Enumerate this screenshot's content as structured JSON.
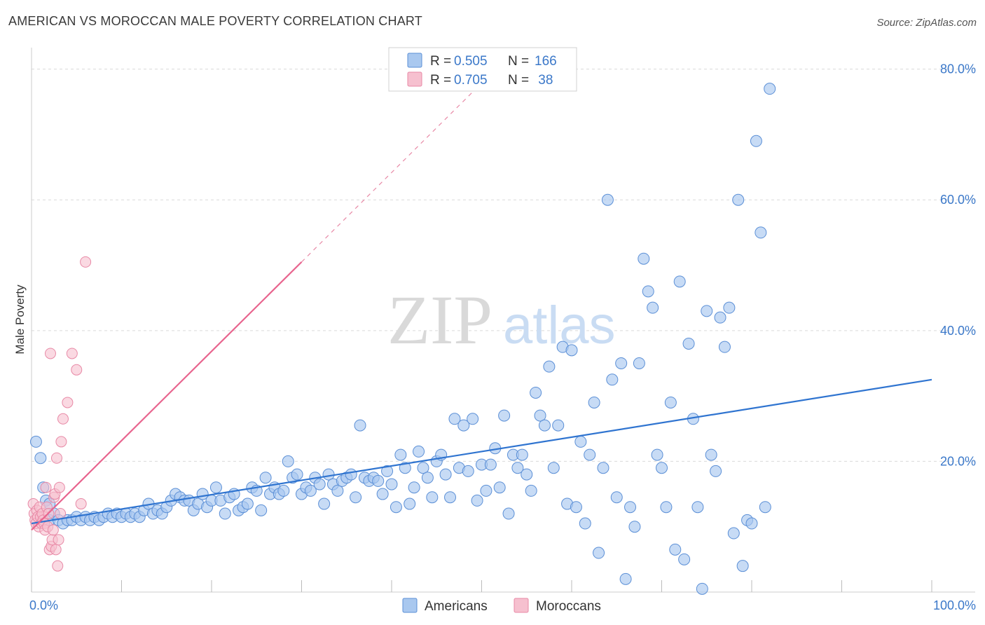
{
  "header": {
    "title": "AMERICAN VS MOROCCAN MALE POVERTY CORRELATION CHART",
    "source": "Source: ZipAtlas.com"
  },
  "watermark": {
    "zip": "ZIP",
    "atlas": "atlas"
  },
  "legend": {
    "rows": [
      {
        "r_label": "R = ",
        "r_value": "0.505",
        "n_label": "N = ",
        "n_value": "166"
      },
      {
        "r_label": "R = ",
        "r_value": "0.705",
        "n_label": "N = ",
        "n_value": " 38"
      }
    ]
  },
  "bottom_legend": {
    "americans": "Americans",
    "moroccans": "Moroccans"
  },
  "colors": {
    "americans_fill": "#a9c8ef",
    "americans_stroke": "#5b8fd6",
    "americans_line": "#2f74d0",
    "moroccans_fill": "#f6c0cf",
    "moroccans_stroke": "#e889a6",
    "moroccans_line": "#e8648e",
    "tick_label": "#3b78c9",
    "grid": "#d9d9d9"
  },
  "chart_data": {
    "type": "scatter",
    "title": "AMERICAN VS MOROCCAN MALE POVERTY CORRELATION CHART",
    "xlabel": "",
    "ylabel": "Male Poverty",
    "xlim": [
      0,
      100
    ],
    "ylim": [
      0,
      82
    ],
    "x_tick_labels": [
      "0.0%",
      "100.0%"
    ],
    "y_ticks": [
      20,
      40,
      60,
      80
    ],
    "y_tick_labels": [
      "20.0%",
      "40.0%",
      "60.0%",
      "80.0%"
    ],
    "grid": true,
    "legend_position": "top-center",
    "series": [
      {
        "name": "Americans",
        "R": 0.505,
        "N": 166,
        "trend": {
          "x": [
            0,
            100
          ],
          "y": [
            10.5,
            32.5
          ]
        },
        "points": [
          [
            0.5,
            23
          ],
          [
            1,
            20.5
          ],
          [
            1.3,
            16
          ],
          [
            1.6,
            14
          ],
          [
            2,
            13.5
          ],
          [
            2,
            11
          ],
          [
            2.5,
            12
          ],
          [
            3,
            11
          ],
          [
            3.5,
            10.5
          ],
          [
            4,
            11
          ],
          [
            4.5,
            11
          ],
          [
            5,
            11.5
          ],
          [
            5.5,
            11
          ],
          [
            6,
            11.5
          ],
          [
            6.5,
            11
          ],
          [
            7,
            11.5
          ],
          [
            7.5,
            11
          ],
          [
            8,
            11.5
          ],
          [
            8.5,
            12
          ],
          [
            9,
            11.5
          ],
          [
            9.5,
            12
          ],
          [
            10,
            11.5
          ],
          [
            10.5,
            12
          ],
          [
            11,
            11.5
          ],
          [
            11.5,
            12
          ],
          [
            12,
            11.5
          ],
          [
            12.5,
            12.5
          ],
          [
            13,
            13.5
          ],
          [
            13.5,
            12
          ],
          [
            14,
            12.5
          ],
          [
            14.5,
            12
          ],
          [
            15,
            13
          ],
          [
            15.5,
            14
          ],
          [
            16,
            15
          ],
          [
            16.5,
            14.5
          ],
          [
            17,
            14
          ],
          [
            17.5,
            14
          ],
          [
            18,
            12.5
          ],
          [
            18.5,
            13.5
          ],
          [
            19,
            15
          ],
          [
            19.5,
            13
          ],
          [
            20,
            14
          ],
          [
            20.5,
            16
          ],
          [
            21,
            14
          ],
          [
            21.5,
            12
          ],
          [
            22,
            14.5
          ],
          [
            22.5,
            15
          ],
          [
            23,
            12.5
          ],
          [
            23.5,
            13
          ],
          [
            24,
            13.5
          ],
          [
            24.5,
            16
          ],
          [
            25,
            15.5
          ],
          [
            25.5,
            12.5
          ],
          [
            26,
            17.5
          ],
          [
            26.5,
            15
          ],
          [
            27,
            16
          ],
          [
            27.5,
            15
          ],
          [
            28,
            15.5
          ],
          [
            28.5,
            20
          ],
          [
            29,
            17.5
          ],
          [
            29.5,
            18
          ],
          [
            30,
            15
          ],
          [
            30.5,
            16
          ],
          [
            31,
            15.5
          ],
          [
            31.5,
            17.5
          ],
          [
            32,
            16.5
          ],
          [
            32.5,
            13.5
          ],
          [
            33,
            18
          ],
          [
            33.5,
            16.5
          ],
          [
            34,
            15.5
          ],
          [
            34.5,
            17
          ],
          [
            35,
            17.5
          ],
          [
            35.5,
            18
          ],
          [
            36,
            14.5
          ],
          [
            36.5,
            25.5
          ],
          [
            37,
            17.5
          ],
          [
            37.5,
            17
          ],
          [
            38,
            17.5
          ],
          [
            38.5,
            17
          ],
          [
            39,
            15
          ],
          [
            39.5,
            18.5
          ],
          [
            40,
            16.5
          ],
          [
            40.5,
            13
          ],
          [
            41,
            21
          ],
          [
            41.5,
            19
          ],
          [
            42,
            13.5
          ],
          [
            42.5,
            16
          ],
          [
            43,
            21.5
          ],
          [
            43.5,
            19
          ],
          [
            44,
            17.5
          ],
          [
            44.5,
            14.5
          ],
          [
            45,
            20
          ],
          [
            45.5,
            21
          ],
          [
            46,
            18
          ],
          [
            46.5,
            14.5
          ],
          [
            47,
            26.5
          ],
          [
            47.5,
            19
          ],
          [
            48,
            25.5
          ],
          [
            48.5,
            18.5
          ],
          [
            49,
            26.5
          ],
          [
            49.5,
            14
          ],
          [
            50,
            19.5
          ],
          [
            50.5,
            15.5
          ],
          [
            51,
            19.5
          ],
          [
            51.5,
            22
          ],
          [
            52,
            16
          ],
          [
            52.5,
            27
          ],
          [
            53,
            12
          ],
          [
            53.5,
            21
          ],
          [
            54,
            19
          ],
          [
            54.5,
            21
          ],
          [
            55,
            18
          ],
          [
            55.5,
            15.5
          ],
          [
            56,
            30.5
          ],
          [
            56.5,
            27
          ],
          [
            57,
            25.5
          ],
          [
            57.5,
            34.5
          ],
          [
            58,
            19
          ],
          [
            58.5,
            25.5
          ],
          [
            59,
            37.5
          ],
          [
            59.5,
            13.5
          ],
          [
            60,
            37
          ],
          [
            60.5,
            13
          ],
          [
            61,
            23
          ],
          [
            61.5,
            10.5
          ],
          [
            62,
            21
          ],
          [
            62.5,
            29
          ],
          [
            63,
            6
          ],
          [
            63.5,
            19
          ],
          [
            64,
            60
          ],
          [
            64.5,
            32.5
          ],
          [
            65,
            14.5
          ],
          [
            65.5,
            35
          ],
          [
            66,
            2
          ],
          [
            66.5,
            13
          ],
          [
            67,
            10
          ],
          [
            67.5,
            35
          ],
          [
            68,
            51
          ],
          [
            68.5,
            46
          ],
          [
            69,
            43.5
          ],
          [
            69.5,
            21
          ],
          [
            70,
            19
          ],
          [
            70.5,
            13
          ],
          [
            71,
            29
          ],
          [
            71.5,
            6.5
          ],
          [
            72,
            47.5
          ],
          [
            72.5,
            5
          ],
          [
            73,
            38
          ],
          [
            73.5,
            26.5
          ],
          [
            74,
            13
          ],
          [
            74.5,
            0.5
          ],
          [
            75,
            43
          ],
          [
            75.5,
            21
          ],
          [
            76,
            18.5
          ],
          [
            76.5,
            42
          ],
          [
            77,
            37.5
          ],
          [
            77.5,
            43.5
          ],
          [
            78,
            9
          ],
          [
            78.5,
            60
          ],
          [
            79,
            4
          ],
          [
            79.5,
            11
          ],
          [
            80,
            10.5
          ],
          [
            80.5,
            69
          ],
          [
            81,
            55
          ],
          [
            81.5,
            13
          ],
          [
            82,
            77
          ]
        ]
      },
      {
        "name": "Moroccans",
        "R": 0.705,
        "N": 38,
        "trend": {
          "x": [
            0,
            30
          ],
          "y": [
            9.5,
            50.5
          ]
        },
        "trend_dashed": {
          "x": [
            30,
            49
          ],
          "y": [
            50.5,
            76.5
          ]
        },
        "points": [
          [
            0.2,
            13.5
          ],
          [
            0.3,
            12
          ],
          [
            0.4,
            11
          ],
          [
            0.5,
            10.5
          ],
          [
            0.6,
            12.5
          ],
          [
            0.7,
            11.5
          ],
          [
            0.8,
            10
          ],
          [
            0.9,
            13
          ],
          [
            1,
            11.5
          ],
          [
            1.1,
            10.5
          ],
          [
            1.2,
            12
          ],
          [
            1.3,
            11
          ],
          [
            1.4,
            10.5
          ],
          [
            1.5,
            9.5
          ],
          [
            1.6,
            16
          ],
          [
            1.7,
            13
          ],
          [
            1.8,
            10
          ],
          [
            1.9,
            12
          ],
          [
            2,
            6.5
          ],
          [
            2.1,
            36.5
          ],
          [
            2.2,
            7
          ],
          [
            2.3,
            8
          ],
          [
            2.4,
            9.5
          ],
          [
            2.5,
            14.5
          ],
          [
            2.6,
            15
          ],
          [
            2.7,
            6.5
          ],
          [
            2.8,
            20.5
          ],
          [
            2.9,
            4
          ],
          [
            3,
            8
          ],
          [
            3.1,
            16
          ],
          [
            3.2,
            12
          ],
          [
            3.3,
            23
          ],
          [
            3.5,
            26.5
          ],
          [
            4,
            29
          ],
          [
            4.5,
            36.5
          ],
          [
            5,
            34
          ],
          [
            5.5,
            13.5
          ],
          [
            6,
            50.5
          ]
        ]
      }
    ]
  }
}
